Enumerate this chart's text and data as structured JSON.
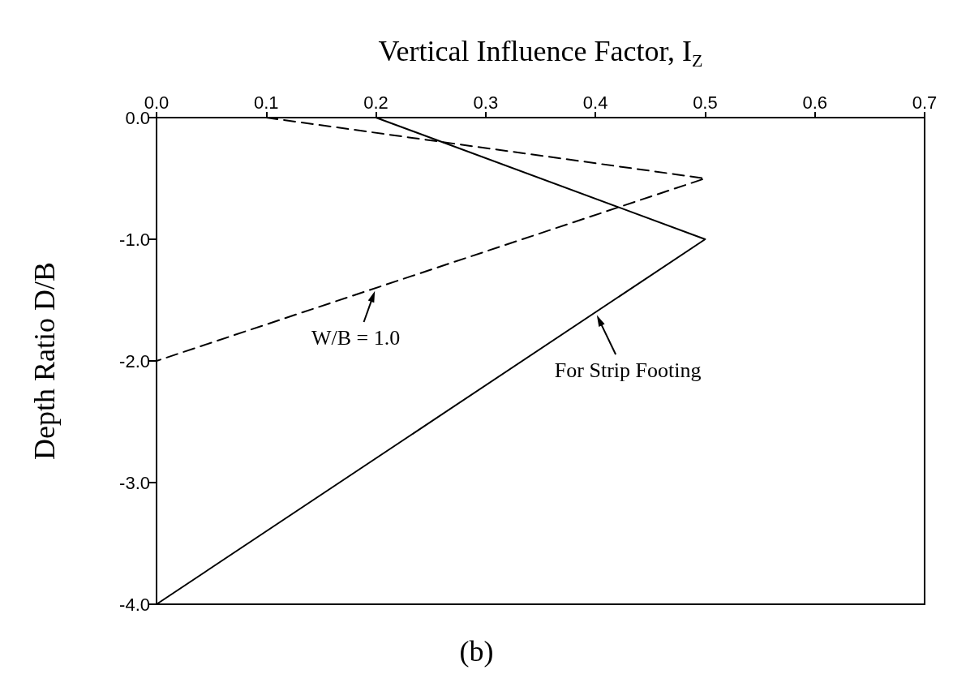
{
  "chart_data": {
    "type": "line",
    "xlabel": "Vertical Influence Factor, I$_{Z}$",
    "ylabel": "Depth Ratio D/B",
    "series": [
      {
        "x": [
          0.2,
          0.5,
          0.0
        ],
        "values": [
          0,
          -1,
          -4
        ],
        "color": "#000000",
        "line_style": "solid"
      },
      {
        "x": [
          0.1,
          0.5,
          0.0
        ],
        "values": [
          0,
          -0.5,
          -2
        ],
        "color": "#000000",
        "line_style": "dashed"
      }
    ],
    "xlim": [
      0,
      0.7
    ],
    "xticks": [
      {
        "value": 0,
        "label": "0.0"
      },
      {
        "value": 0.1,
        "label": "0.1"
      },
      {
        "value": 0.2,
        "label": "0.2"
      },
      {
        "value": 0.3,
        "label": "0.3"
      },
      {
        "value": 0.4,
        "label": "0.4"
      },
      {
        "value": 0.5,
        "label": "0.5"
      },
      {
        "value": 0.6,
        "label": "0.6"
      },
      {
        "value": 0.7,
        "label": "0.7"
      }
    ],
    "ylim": [
      -4,
      0
    ],
    "yticks": [
      {
        "value": -4,
        "label": "-4.0"
      },
      {
        "value": -3,
        "label": "-3.0"
      },
      {
        "value": -2,
        "label": "-2.0"
      },
      {
        "value": -1,
        "label": "-1.0"
      },
      {
        "value": 0,
        "label": "0.0"
      }
    ],
    "annotations": [
      {
        "text": "W/B = 1.0",
        "x": 0.2,
        "y": -1.4
      },
      {
        "text": "For Strip Footing",
        "x": 0.4,
        "y": -1.6
      },
      "(b)"
    ],
    "grid": false,
    "marker": "none"
  }
}
